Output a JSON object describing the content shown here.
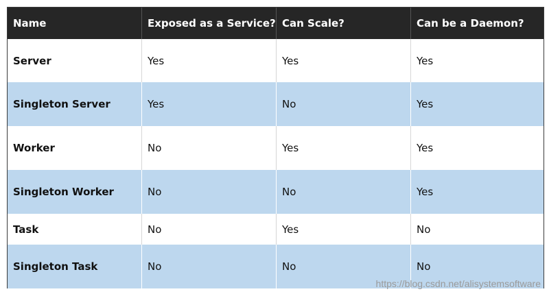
{
  "table": {
    "header": [
      "Name",
      "Exposed as a Service?",
      "Can Scale?",
      "Can be a Daemon?"
    ],
    "rows": [
      [
        "Server",
        "Yes",
        "Yes",
        "Yes"
      ],
      [
        "Singleton Server",
        "Yes",
        "No",
        "Yes"
      ],
      [
        "Worker",
        "No",
        "Yes",
        "Yes"
      ],
      [
        "Singleton Worker",
        "No",
        "No",
        "Yes"
      ],
      [
        "Task",
        "No",
        "Yes",
        "No"
      ],
      [
        "Singleton Task",
        "No",
        "No",
        "No"
      ]
    ]
  },
  "watermark": "https://blog.csdn.net/alisystemsoftware"
}
